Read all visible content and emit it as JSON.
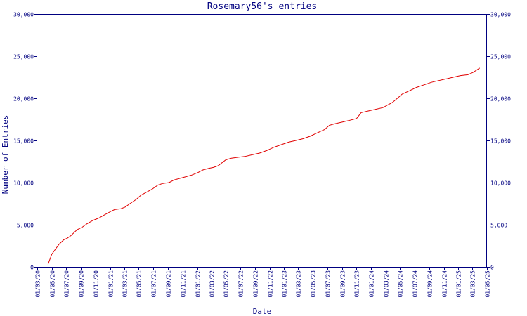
{
  "chart_data": {
    "type": "line",
    "title": "Rosemary56's entries",
    "xlabel": "Date",
    "ylabel": "Number of Entries",
    "ylim": [
      0,
      30000
    ],
    "y_ticks": [
      0,
      5000,
      10000,
      15000,
      20000,
      25000,
      30000
    ],
    "y_tick_labels": [
      "0",
      "5,000",
      "10,000",
      "15,000",
      "20,000",
      "25,000",
      "30,000"
    ],
    "xlim": [
      "2020-03-01",
      "2025-05-01"
    ],
    "x_ticks": [
      "2020-03-01",
      "2020-05-01",
      "2020-07-01",
      "2020-09-01",
      "2020-11-01",
      "2021-01-01",
      "2021-03-01",
      "2021-05-01",
      "2021-07-01",
      "2021-09-01",
      "2021-11-01",
      "2022-01-01",
      "2022-03-01",
      "2022-05-01",
      "2022-07-01",
      "2022-09-01",
      "2022-11-01",
      "2023-01-01",
      "2023-03-01",
      "2023-05-01",
      "2023-07-01",
      "2023-09-01",
      "2023-11-01",
      "2024-01-01",
      "2024-03-01",
      "2024-05-01",
      "2024-07-01",
      "2024-09-01",
      "2024-11-01",
      "2025-01-01",
      "2025-03-01",
      "2025-05-01"
    ],
    "x_tick_labels": [
      "01/03/20",
      "01/05/20",
      "01/07/20",
      "01/09/20",
      "01/11/20",
      "01/01/21",
      "01/03/21",
      "01/05/21",
      "01/07/21",
      "01/09/21",
      "01/11/21",
      "01/01/22",
      "01/03/22",
      "01/05/22",
      "01/07/22",
      "01/09/22",
      "01/11/22",
      "01/01/23",
      "01/03/23",
      "01/05/23",
      "01/07/23",
      "01/09/23",
      "01/11/23",
      "01/01/24",
      "01/03/24",
      "01/05/24",
      "01/07/24",
      "01/09/24",
      "01/11/24",
      "01/01/25",
      "01/03/25",
      "01/05/25"
    ],
    "grid": false,
    "series": [
      {
        "color": "#e00000",
        "x": [
          "2020-04-15",
          "2020-05-01",
          "2020-06-01",
          "2020-06-20",
          "2020-07-05",
          "2020-07-20",
          "2020-08-15",
          "2020-09-05",
          "2020-09-25",
          "2020-10-20",
          "2020-11-15",
          "2020-12-10",
          "2021-01-05",
          "2021-01-20",
          "2021-02-15",
          "2021-03-05",
          "2021-03-25",
          "2021-04-20",
          "2021-05-10",
          "2021-06-05",
          "2021-06-25",
          "2021-07-20",
          "2021-08-10",
          "2021-09-05",
          "2021-09-25",
          "2021-10-20",
          "2021-11-15",
          "2021-12-10",
          "2022-01-05",
          "2022-01-25",
          "2022-02-20",
          "2022-03-10",
          "2022-03-30",
          "2022-05-01",
          "2022-05-25",
          "2022-06-20",
          "2022-07-20",
          "2022-08-20",
          "2022-09-20",
          "2022-10-20",
          "2022-11-20",
          "2022-12-20",
          "2023-01-20",
          "2023-02-20",
          "2023-03-20",
          "2023-04-20",
          "2023-05-20",
          "2023-06-20",
          "2023-07-10",
          "2023-08-05",
          "2023-09-05",
          "2023-10-05",
          "2023-11-01",
          "2023-11-20",
          "2023-12-20",
          "2024-01-20",
          "2024-02-20",
          "2024-03-10",
          "2024-03-30",
          "2024-04-20",
          "2024-05-10",
          "2024-06-10",
          "2024-07-10",
          "2024-08-10",
          "2024-09-10",
          "2024-10-10",
          "2024-11-10",
          "2024-12-10",
          "2025-01-10",
          "2025-02-10",
          "2025-03-05",
          "2025-04-01"
        ],
        "y": [
          300,
          1500,
          2700,
          3200,
          3400,
          3700,
          4400,
          4700,
          5100,
          5500,
          5800,
          6200,
          6600,
          6800,
          6900,
          7100,
          7500,
          8000,
          8500,
          8900,
          9200,
          9700,
          9900,
          10000,
          10300,
          10500,
          10700,
          10900,
          11200,
          11500,
          11700,
          11800,
          12000,
          12700,
          12900,
          13000,
          13100,
          13300,
          13500,
          13800,
          14200,
          14500,
          14800,
          15000,
          15200,
          15500,
          15900,
          16300,
          16800,
          17000,
          17200,
          17400,
          17600,
          18300,
          18500,
          18700,
          18900,
          19200,
          19500,
          20000,
          20500,
          20900,
          21300,
          21600,
          21900,
          22100,
          22300,
          22500,
          22700,
          22800,
          23100,
          23600
        ]
      }
    ]
  }
}
